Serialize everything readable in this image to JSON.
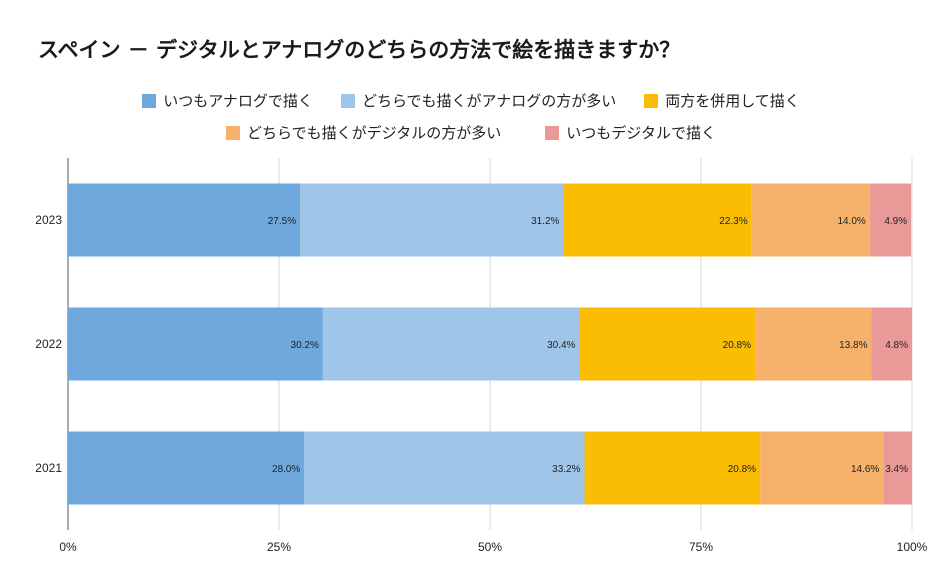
{
  "chart_data": {
    "type": "bar",
    "orientation": "horizontal",
    "stacked": true,
    "title": "スペイン － デジタルとアナログのどちらの方法で絵を描きますか？",
    "categories": [
      "2023",
      "2022",
      "2021"
    ],
    "series": [
      {
        "name": "いつもアナログで描く",
        "color": "#6fa8dc",
        "values": [
          27.5,
          30.2,
          28.0
        ],
        "labels": [
          "27.5%",
          "30.2%",
          "28.0%"
        ]
      },
      {
        "name": "どちらでも描くがアナログの方が多い",
        "color": "#9fc5e8",
        "values": [
          31.2,
          30.4,
          33.2
        ],
        "labels": [
          "31.2%",
          "30.4%",
          "33.2%"
        ]
      },
      {
        "name": "両方を併用して描く",
        "color": "#fbbc04",
        "values": [
          22.3,
          20.8,
          20.8
        ],
        "labels": [
          "22.3%",
          "20.8%",
          "20.8%"
        ]
      },
      {
        "name": "どちらでも描くがデジタルの方が多い",
        "color": "#f6b26b",
        "values": [
          14.0,
          13.8,
          14.6
        ],
        "labels": [
          "14.0%",
          "13.8%",
          "14.6%"
        ]
      },
      {
        "name": "いつもデジタルで描く",
        "color": "#ea9999",
        "values": [
          4.9,
          4.8,
          3.4
        ],
        "labels": [
          "4.9%",
          "4.8%",
          "3.4%"
        ]
      }
    ],
    "x_ticks": [
      "0%",
      "25%",
      "50%",
      "75%",
      "100%"
    ],
    "xlim": [
      0,
      100
    ],
    "legend_position": "top",
    "grid": true
  }
}
